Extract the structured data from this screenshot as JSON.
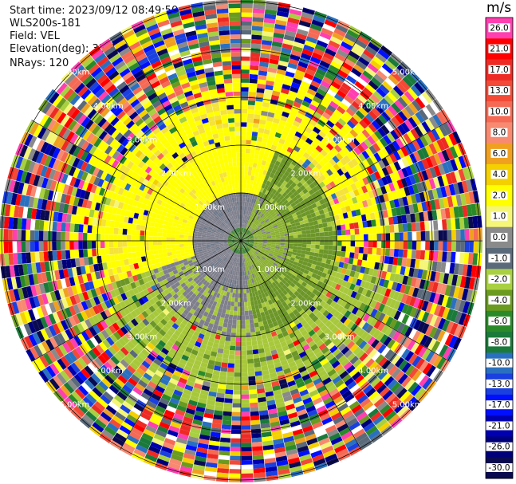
{
  "header": {
    "start_time": "Start time: 2023/09/12 08:49:50",
    "station": "WLS200s-181",
    "field": "Field: VEL",
    "elevation": "Elevation(deg): 35.30",
    "nrays": "NRays: 120"
  },
  "colorbar": {
    "unit": "m/s",
    "ticks": [
      "26.0",
      "21.0",
      "17.0",
      "13.0",
      "10.0",
      "8.0",
      "6.0",
      "4.0",
      "2.0",
      "1.0",
      "0.0",
      "-1.0",
      "-2.0",
      "-4.0",
      "-6.0",
      "-8.0",
      "-10.0",
      "-13.0",
      "-17.0",
      "-21.0",
      "-26.0",
      "-30.0"
    ],
    "colors": [
      "#ff3fb0",
      "#ff0000",
      "#ee2a24",
      "#f24a36",
      "#f56a55",
      "#f78a70",
      "#f0a020",
      "#f5d000",
      "#ffff00",
      "#f5f578",
      "#8a8a8a",
      "#5a6a7a",
      "#a8d040",
      "#6a9a20",
      "#2a8a2a",
      "#1a7a3a",
      "#2a70c0",
      "#1a40e0",
      "#0010ff",
      "#0000b0",
      "#00007a",
      "#0a0a50"
    ]
  },
  "chart_data": {
    "type": "heatmap",
    "projection": "polar PPI",
    "field": "VEL",
    "units": "m/s",
    "n_rays": 120,
    "elevation_deg": 35.3,
    "range_ring_labels": [
      "1.00km",
      "2.00km",
      "3.00km",
      "4.00km",
      "5.00km"
    ],
    "colorscale_range": [
      -30.0,
      26.0
    ],
    "structure": {
      "center_near_zero_ms": "grey (0 to -1 m/s), ~0.9 km radius",
      "inner_ring_receding": "yellow (+2 to +4 m/s) north/west sector, 1-2 km",
      "inner_ring_approaching": "green (-2 to -4 m/s) south/east sector, 1-3 km",
      "outer_region": "noise (mixed colors), beyond ~3 km"
    }
  }
}
